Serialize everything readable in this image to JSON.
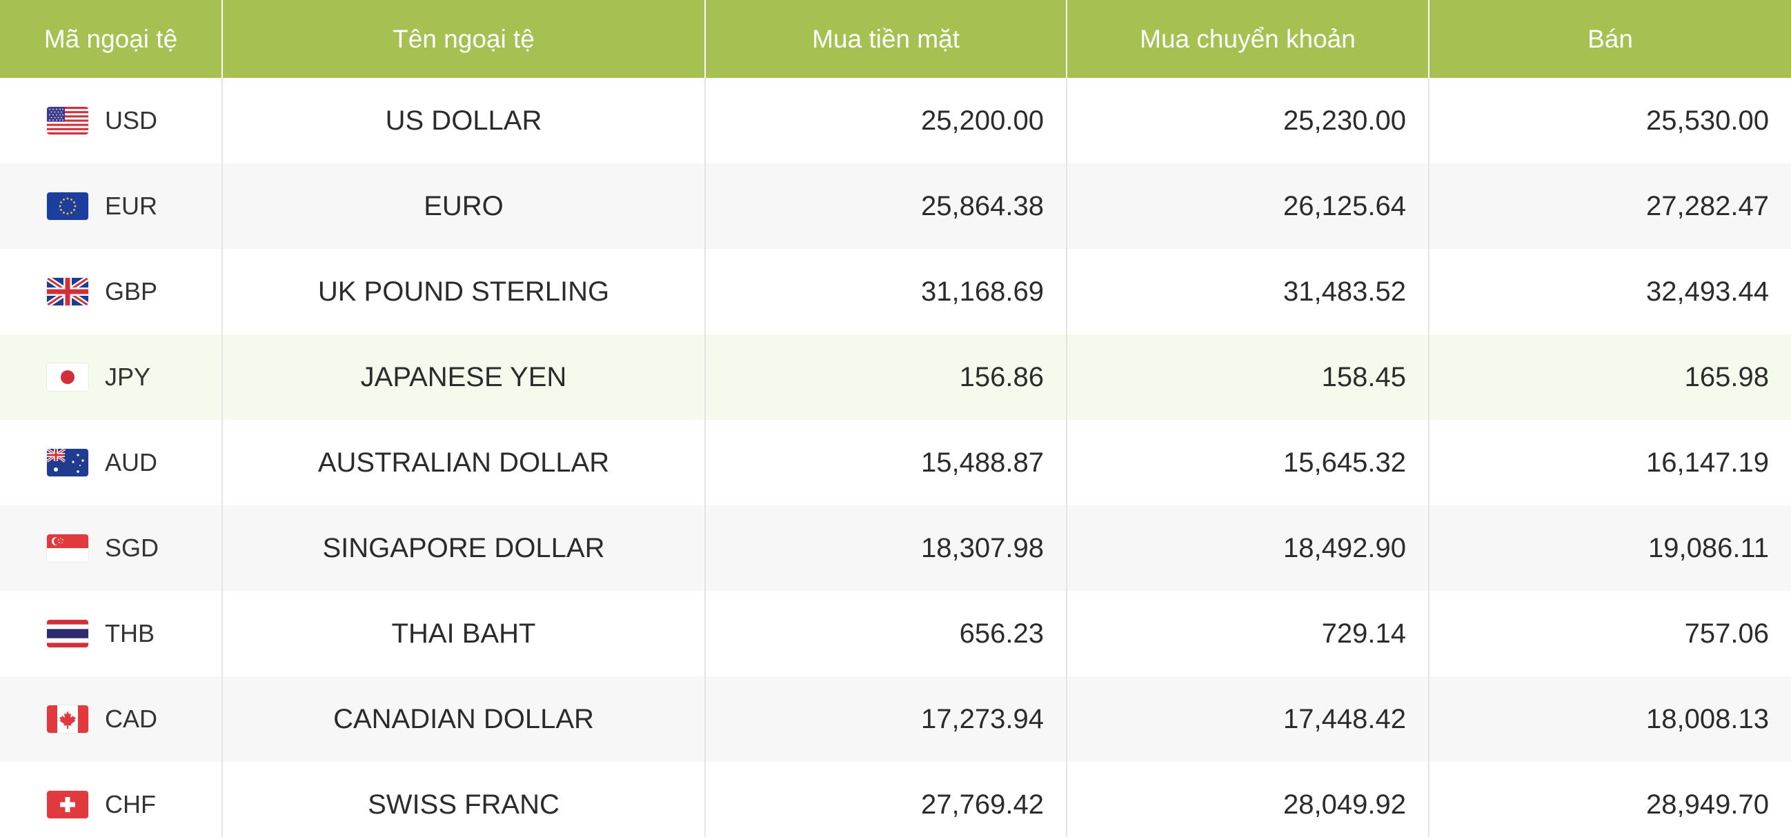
{
  "table": {
    "headers": {
      "code": "Mã ngoại tệ",
      "name": "Tên ngoại tệ",
      "cash_buy": "Mua tiền mặt",
      "transfer_buy": "Mua chuyển khoản",
      "sell": "Bán"
    },
    "rows": [
      {
        "code": "USD",
        "flag_icon": "us-flag-icon",
        "name": "US DOLLAR",
        "cash_buy": "25,200.00",
        "transfer_buy": "25,230.00",
        "sell": "25,530.00"
      },
      {
        "code": "EUR",
        "flag_icon": "eu-flag-icon",
        "name": "EURO",
        "cash_buy": "25,864.38",
        "transfer_buy": "26,125.64",
        "sell": "27,282.47"
      },
      {
        "code": "GBP",
        "flag_icon": "uk-flag-icon",
        "name": "UK POUND STERLING",
        "cash_buy": "31,168.69",
        "transfer_buy": "31,483.52",
        "sell": "32,493.44"
      },
      {
        "code": "JPY",
        "flag_icon": "japan-flag-icon",
        "name": "JAPANESE YEN",
        "cash_buy": "156.86",
        "transfer_buy": "158.45",
        "sell": "165.98"
      },
      {
        "code": "AUD",
        "flag_icon": "australia-flag-icon",
        "name": "AUSTRALIAN DOLLAR",
        "cash_buy": "15,488.87",
        "transfer_buy": "15,645.32",
        "sell": "16,147.19"
      },
      {
        "code": "SGD",
        "flag_icon": "singapore-flag-icon",
        "name": "SINGAPORE DOLLAR",
        "cash_buy": "18,307.98",
        "transfer_buy": "18,492.90",
        "sell": "19,086.11"
      },
      {
        "code": "THB",
        "flag_icon": "thailand-flag-icon",
        "name": "THAI BAHT",
        "cash_buy": "656.23",
        "transfer_buy": "729.14",
        "sell": "757.06"
      },
      {
        "code": "CAD",
        "flag_icon": "canada-flag-icon",
        "name": "CANADIAN DOLLAR",
        "cash_buy": "17,273.94",
        "transfer_buy": "17,448.42",
        "sell": "18,008.13"
      },
      {
        "code": "CHF",
        "flag_icon": "switzerland-flag-icon",
        "name": "SWISS FRANC",
        "cash_buy": "27,769.42",
        "transfer_buy": "28,049.92",
        "sell": "28,949.70"
      }
    ]
  },
  "colors": {
    "header_bg": "#a5c152",
    "header_text": "#ffffff",
    "row_alt_bg": "#f7f7f7",
    "row_highlight_bg": "#f5fbec",
    "text": "#2b2b2b"
  }
}
